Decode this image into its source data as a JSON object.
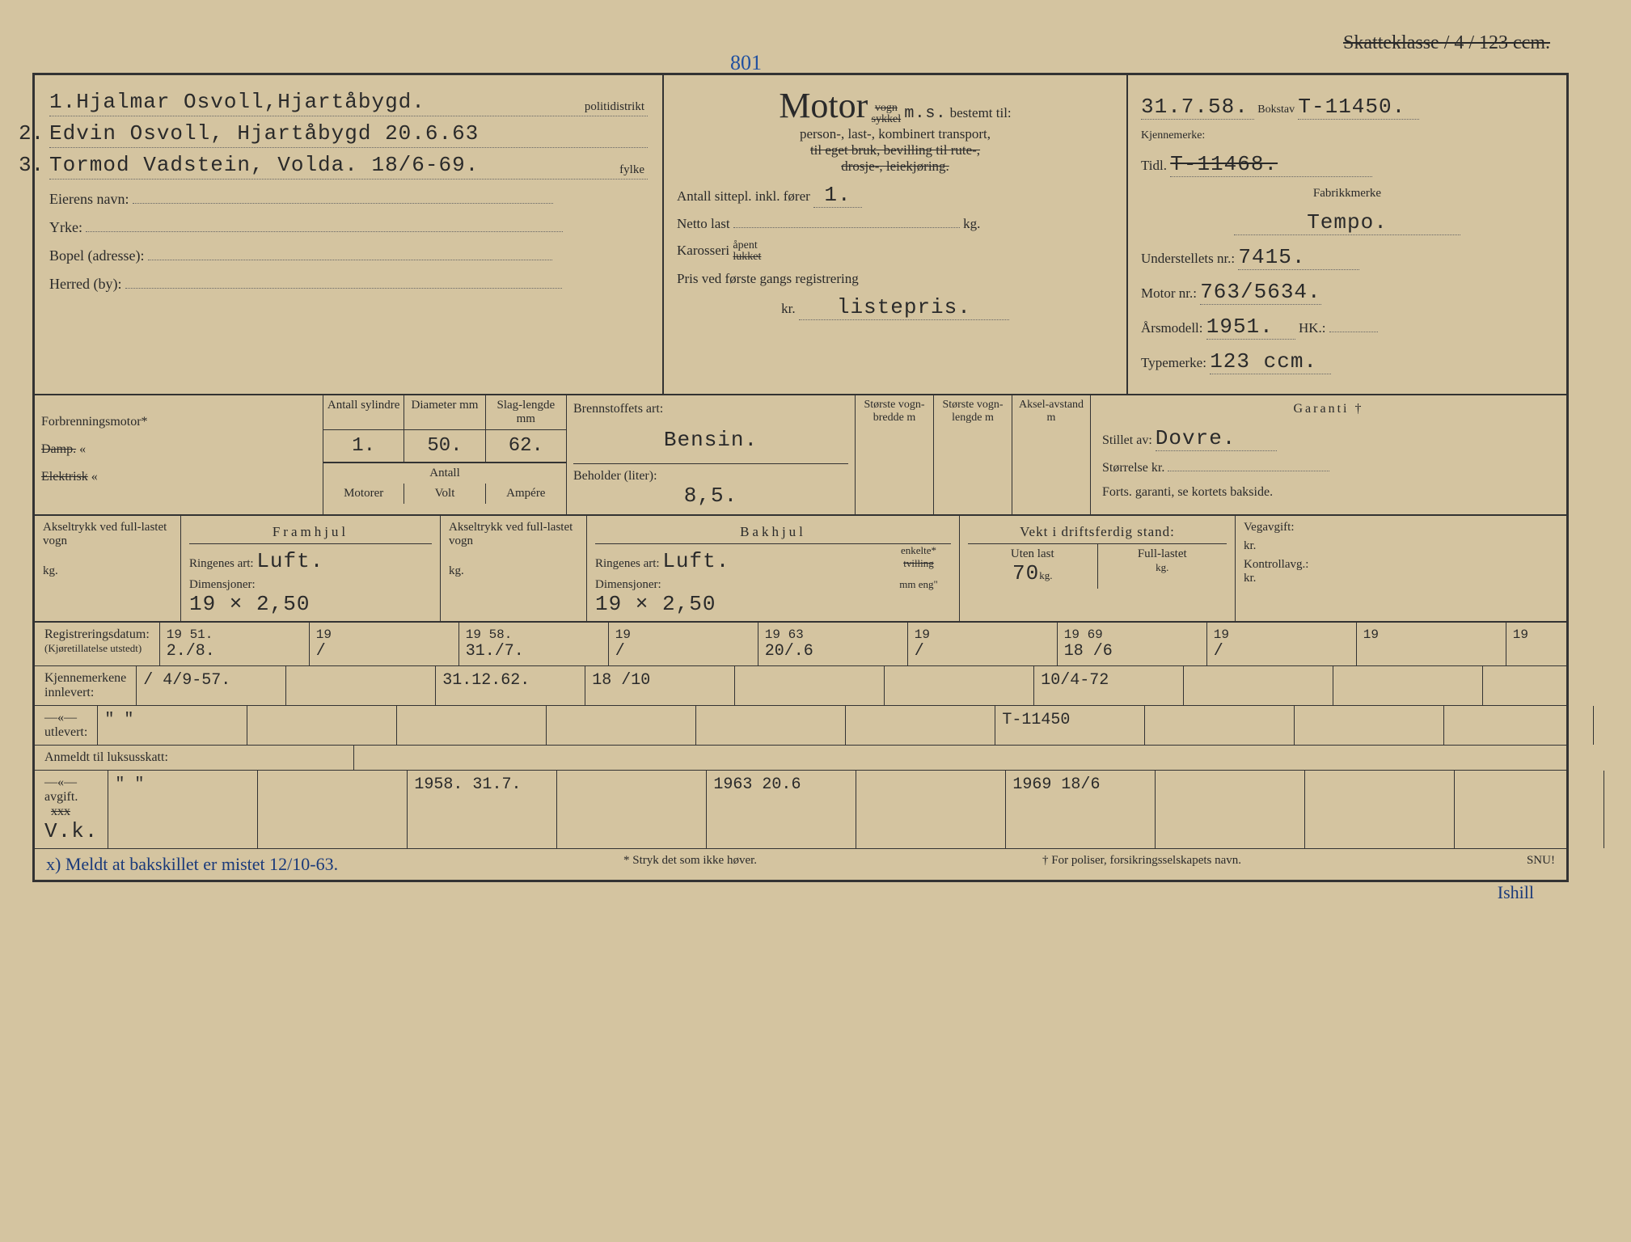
{
  "topRight": "Skatteklasse / 4 / 123 ccm.",
  "pageNum": "801",
  "owners": {
    "line1": "1.Hjalmar Osvoll,Hjartåbygd.",
    "line1_suffix": "politidistrikt",
    "pre2": "2.",
    "line2": "Edvin Osvoll, Hjartåbygd 20.6.63",
    "pre3": "3.",
    "line3": "Tormod Vadstein, Volda. 18/6-69.",
    "line3_suffix": "fylke",
    "eier_label": "Eierens navn:",
    "yrke_label": "Yrke:",
    "bopel_label": "Bopel (adresse):",
    "herred_label": "Herred (by):"
  },
  "motor": {
    "title": "Motor",
    "strike1": "vogn",
    "strike2": "sykkel",
    "suffix": "m.s.",
    "bestemt": "bestemt til:",
    "line1": "person-, last-, kombinert transport,",
    "line2": "til eget bruk, bevilling til rute-,",
    "line3": "drosje-, leiekjøring.",
    "seats_label": "Antall sittepl. inkl. fører",
    "seats": "1.",
    "netto_label": "Netto last",
    "netto_unit": "kg.",
    "kaross_label": "Karosseri",
    "kaross_val": "åpent",
    "kaross_strike": "lukket",
    "pris_label": "Pris ved første gangs registrering",
    "pris_kr": "kr.",
    "pris_val": "listepris."
  },
  "reg": {
    "date": "31.7.58.",
    "bokstav_label": "Bokstav",
    "bokstav": "T-11450.",
    "kjenne_label": "Kjennemerke:",
    "tidl_label": "Tidl.",
    "tidl_strike": "T-11468.",
    "fabrikk_label": "Fabrikkmerke",
    "fabrikk": "Tempo.",
    "understell_label": "Understellets nr.:",
    "understell": "7415.",
    "motornr_label": "Motor nr.:",
    "motornr": "763/5634.",
    "arsmodell_label": "Årsmodell:",
    "arsmodell": "1951.",
    "hk_label": "HK.:",
    "type_label": "Typemerke:",
    "type": "123 ccm."
  },
  "engine": {
    "forbr_label": "Forbrenningsmotor*",
    "damp_label": "Damp.",
    "elektrisk_label": "Elektrisk",
    "antall_syl": "Antall sylindre",
    "diameter": "Diameter mm",
    "slag": "Slag-lengde mm",
    "syl_val": "1.",
    "dia_val": "50.",
    "slag_val": "62.",
    "antall": "Antall",
    "motorer": "Motorer",
    "volt": "Volt",
    "ampere": "Ampére",
    "brenn_label": "Brennstoffets art:",
    "brenn_val": "Bensin.",
    "beholder_label": "Beholder (liter):",
    "beholder_val": "8,5.",
    "bredde": "Største vogn-bredde m",
    "lengde": "Største vogn-lengde m",
    "aksel": "Aksel-avstand m",
    "garanti_title": "Garanti †",
    "stillet_label": "Stillet av:",
    "stillet_val": "Dovre.",
    "storrelse": "Størrelse kr.",
    "forts": "Forts. garanti, se kortets bakside."
  },
  "wheels": {
    "fram_title": "Framhjul",
    "bak_title": "Bakhjul",
    "aksel_label": "Akseltrykk ved full-lastet vogn",
    "ringenes": "Ringenes art:",
    "luft": "Luft.",
    "dim_label": "Dimensjoner:",
    "dim_fram": "19 × 2,50",
    "dim_bak": "19 × 2,50",
    "kg": "kg.",
    "mm_eng": "mm eng\"",
    "enkelte": "enkelte*",
    "tvilling": "tvilling",
    "vekt_title": "Vekt i driftsferdig stand:",
    "uten": "Uten last",
    "full": "Full-lastet",
    "uten_val": "70",
    "vegavgift": "Vegavgift:",
    "kontroll": "Kontrollavg.:",
    "kr": "kr."
  },
  "dates": {
    "reg_label": "Registreringsdatum:",
    "reg_sub": "(Kjøretillatelse utstedt)",
    "cells_year": [
      "19 51.",
      "19",
      "19 58.",
      "19",
      "19 63",
      "19",
      "19 69",
      "19",
      "19",
      "19"
    ],
    "cells_date": [
      "2./8.",
      "/",
      "31./7.",
      "/",
      "20/.6",
      "/",
      "18 /6",
      "/",
      "",
      ""
    ],
    "innlevert_label": "Kjennemerkene innlevert:",
    "innlevert": [
      "/ 4/9-57.",
      "",
      "31.12.62.",
      "18 /10",
      "",
      "",
      "10/4-72",
      "",
      "",
      ""
    ],
    "utlevert_label": "—«— utlevert:",
    "utlevert": [
      "\" \"",
      "",
      "",
      "",
      "",
      "",
      "T-11450",
      "",
      "",
      ""
    ],
    "anmeldt_label": "Anmeldt til luksusskatt:",
    "avgift_label": "—«— avgift.",
    "vk": "V.k.",
    "avgift": [
      "\" \"",
      "",
      "1958. 31.7.",
      "",
      "1963 20.6",
      "",
      "1969 18/6",
      "",
      "",
      ""
    ]
  },
  "footer": {
    "stryk": "* Stryk det som ikke høver.",
    "poliser": "† For poliser, forsikringsselskapets navn.",
    "snu": "SNU!",
    "note": "x) Meldt at bakskillet er mistet 12/10-63.",
    "sig_right": "Ishill"
  }
}
